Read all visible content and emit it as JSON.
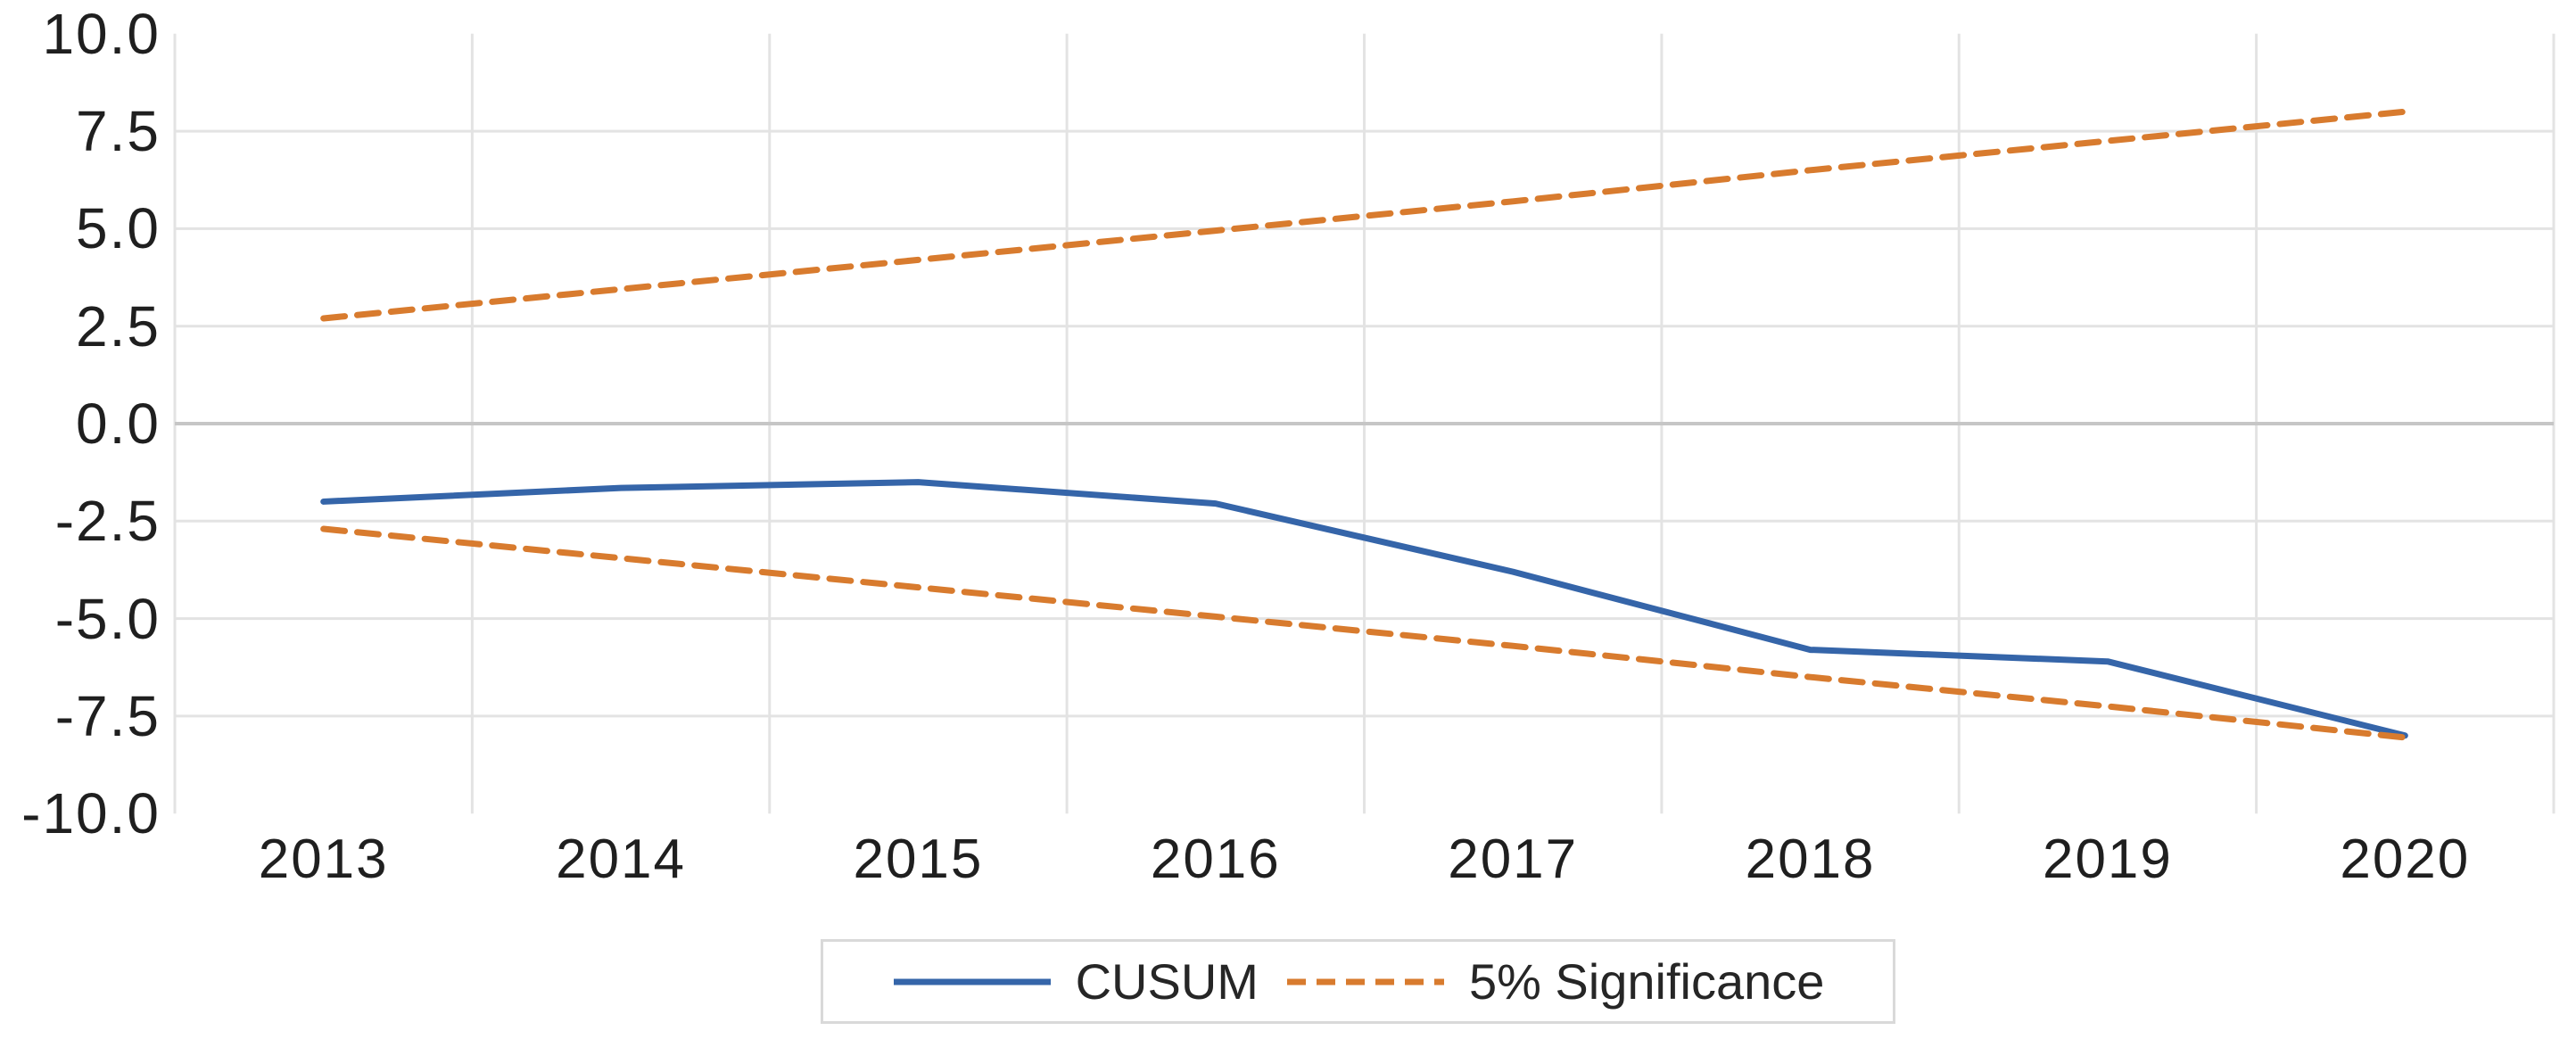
{
  "chart_data": {
    "type": "line",
    "title": "",
    "xlabel": "",
    "ylabel": "",
    "categories": [
      "2013",
      "2014",
      "2015",
      "2016",
      "2017",
      "2018",
      "2019",
      "2020"
    ],
    "series": [
      {
        "name": "CUSUM",
        "style": "solid",
        "color": "#3565A9",
        "values": [
          -2.0,
          -1.65,
          -1.5,
          -2.05,
          -3.8,
          -5.8,
          -6.1,
          -8.0
        ]
      },
      {
        "name": "5% Significance (upper)",
        "style": "dashed",
        "color": "#D87B2E",
        "values": [
          2.7,
          3.45,
          4.2,
          4.95,
          5.7,
          6.5,
          7.25,
          8.0
        ]
      },
      {
        "name": "5% Significance (lower)",
        "style": "dashed",
        "color": "#D87B2E",
        "values": [
          -2.7,
          -3.45,
          -4.2,
          -4.95,
          -5.7,
          -6.5,
          -7.25,
          -8.05
        ]
      }
    ],
    "y_axis": {
      "ticks": [
        {
          "label": "10.0",
          "value": 10
        },
        {
          "label": "7.5",
          "value": 7.5
        },
        {
          "label": "5.0",
          "value": 5
        },
        {
          "label": "2.5",
          "value": 2.5
        },
        {
          "label": "0.0",
          "value": 0
        },
        {
          "label": "-2.5",
          "value": -2.5
        },
        {
          "label": "-5.0",
          "value": -5
        },
        {
          "label": "-7.5",
          "value": -7.5
        },
        {
          "label": "-10.0",
          "value": -10
        }
      ],
      "ylim": [
        -10,
        10
      ],
      "gridline_values": [
        7.5,
        5,
        2.5,
        -2.5,
        -5,
        -7.5
      ],
      "zero_line_value": 0
    },
    "grid": true,
    "legend_position": "bottom-center",
    "legend": [
      {
        "label": "CUSUM"
      },
      {
        "label": "5% Significance"
      }
    ]
  },
  "colors": {
    "cusum_line": "#3565A9",
    "significance_line": "#D87B2E",
    "gridline": "#E3E3E3",
    "zero_line": "#C6C6C6",
    "tick_text": "#1f1f1f",
    "legend_border": "#D9D9D9",
    "background": "#FFFFFF"
  }
}
